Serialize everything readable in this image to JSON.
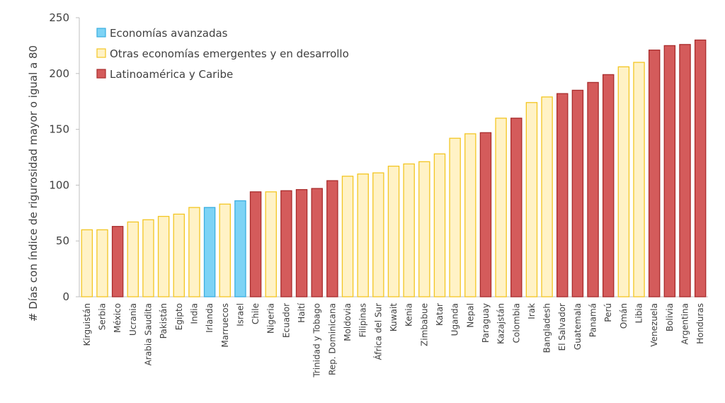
{
  "chart_data": {
    "type": "bar",
    "title": "",
    "xlabel": "",
    "ylabel": "# Días con índice de rigurosidad mayor o igual a 80",
    "ylim": [
      0,
      250
    ],
    "yticks": [
      0,
      50,
      100,
      150,
      200,
      250
    ],
    "grid": false,
    "legend_position": "top-left",
    "groups": [
      {
        "key": "adv",
        "name": "Economías avanzadas",
        "fill": "#7dd3f5",
        "stroke": "#3aaee0"
      },
      {
        "key": "emd",
        "name": "Otras economías emergentes y en desarrollo",
        "fill": "#fff2c6",
        "stroke": "#f3c623"
      },
      {
        "key": "lac",
        "name": "Latinoamérica y Caribe",
        "fill": "#d45b5b",
        "stroke": "#a92c2c"
      }
    ],
    "categories": [
      "Kirguistán",
      "Serbia",
      "México",
      "Ucrania",
      "Arabia Saudita",
      "Pakistán",
      "Egipto",
      "India",
      "Irlanda",
      "Marruecos",
      "Israel",
      "Chile",
      "Nigeria",
      "Ecuador",
      "Haití",
      "Trinidad y Tobago",
      "Rep. Dominicana",
      "Moldovia",
      "Filipinas",
      "África del Sur",
      "Kuwait",
      "Kenia",
      "Zimbabue",
      "Katar",
      "Uganda",
      "Nepal",
      "Paraguay",
      "Kazajstán",
      "Colombia",
      "Irak",
      "Bangladesh",
      "El Salvador",
      "Guatemala",
      "Panamá",
      "Perú",
      "Omán",
      "Libia",
      "Venezuela",
      "Bolivia",
      "Argentina",
      "Honduras"
    ],
    "values": [
      60,
      60,
      63,
      67,
      69,
      72,
      74,
      80,
      80,
      83,
      86,
      94,
      94,
      95,
      96,
      97,
      104,
      108,
      110,
      111,
      117,
      119,
      121,
      128,
      142,
      146,
      147,
      160,
      160,
      174,
      179,
      182,
      185,
      192,
      199,
      206,
      210,
      221,
      225,
      226,
      230
    ],
    "category_groups": [
      "emd",
      "emd",
      "lac",
      "emd",
      "emd",
      "emd",
      "emd",
      "emd",
      "adv",
      "emd",
      "adv",
      "lac",
      "emd",
      "lac",
      "lac",
      "lac",
      "lac",
      "emd",
      "emd",
      "emd",
      "emd",
      "emd",
      "emd",
      "emd",
      "emd",
      "emd",
      "lac",
      "emd",
      "lac",
      "emd",
      "emd",
      "lac",
      "lac",
      "lac",
      "lac",
      "emd",
      "emd",
      "lac",
      "lac",
      "lac",
      "lac"
    ]
  }
}
